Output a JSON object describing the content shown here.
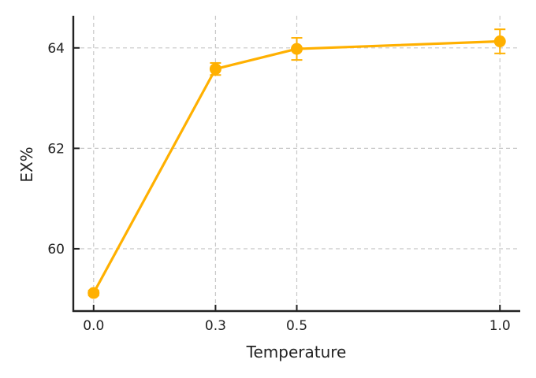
{
  "chart_data": {
    "type": "line",
    "title": "",
    "xlabel": "Temperature",
    "ylabel": "EX%",
    "x": [
      0.0,
      0.3,
      0.5,
      1.0
    ],
    "x_tick_labels": [
      "0.0",
      "0.3",
      "0.5",
      "1.0"
    ],
    "y_ticks": [
      60,
      62,
      64
    ],
    "y_tick_labels": [
      "60",
      "62",
      "64"
    ],
    "xlim": [
      -0.05,
      1.05
    ],
    "ylim": [
      58.76,
      64.64
    ],
    "grid": true,
    "legend": null,
    "series": [
      {
        "name": "EX%",
        "color": "#FFB000",
        "values": [
          59.12,
          63.58,
          63.98,
          64.13
        ],
        "errors": [
          0.05,
          0.12,
          0.22,
          0.24
        ]
      }
    ]
  },
  "colors": {
    "line": "#FFB000",
    "grid": "#c8c8c8",
    "axis": "#222222"
  }
}
